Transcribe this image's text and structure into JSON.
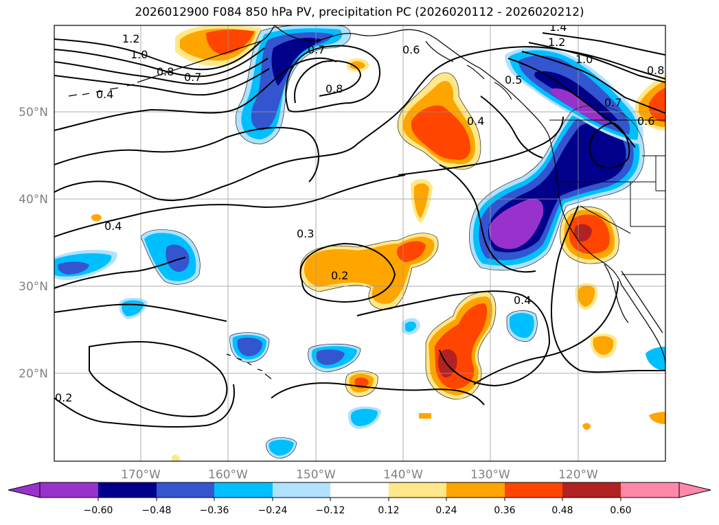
{
  "title": "2026012900 F084 850 hPa PV, precipitation PC (2026020112 - 2026020212)",
  "map": {
    "lat_labels": [
      "50°N",
      "40°N",
      "30°N",
      "20°N"
    ],
    "lat_values": [
      50,
      40,
      30,
      20
    ],
    "lon_labels": [
      "170°W",
      "160°W",
      "150°W",
      "140°W",
      "130°W",
      "120°W"
    ],
    "lon_values": [
      -170,
      -160,
      -150,
      -140,
      -130,
      -120
    ],
    "lon_range": [
      -180,
      -110
    ],
    "lat_range": [
      10,
      60
    ],
    "gridlines": true
  },
  "contour_labels": [
    "1.2",
    "1.0",
    "0.8",
    "0.7",
    "0.4",
    "0.7",
    "0.8",
    "0.6",
    "0.4",
    "1.4",
    "1.2",
    "1.0",
    "0.5",
    "0.7",
    "0.6",
    "0.8",
    "0.4",
    "0.3",
    "0.2",
    "0.4",
    "0.2"
  ],
  "colorbar": {
    "ticks": [
      "−0.60",
      "−0.48",
      "−0.36",
      "−0.24",
      "−0.12",
      "0.12",
      "0.24",
      "0.36",
      "0.48",
      "0.60"
    ],
    "colors": [
      "#9932cc",
      "#00008b",
      "#3455d0",
      "#00bfff",
      "#b0e2ff",
      "#ffffff",
      "#ffe88a",
      "#ffa500",
      "#ff4500",
      "#b22222",
      "#ff88aa"
    ],
    "extend": "both"
  },
  "palette": {
    "purple": "#9932cc",
    "navy": "#00008b",
    "royal": "#3455d0",
    "sky": "#00bfff",
    "pale_blue": "#b0e2ff",
    "pale_yellow": "#ffe88a",
    "orange": "#ffa500",
    "red_orange": "#ff4500",
    "firebrick": "#b22222"
  }
}
